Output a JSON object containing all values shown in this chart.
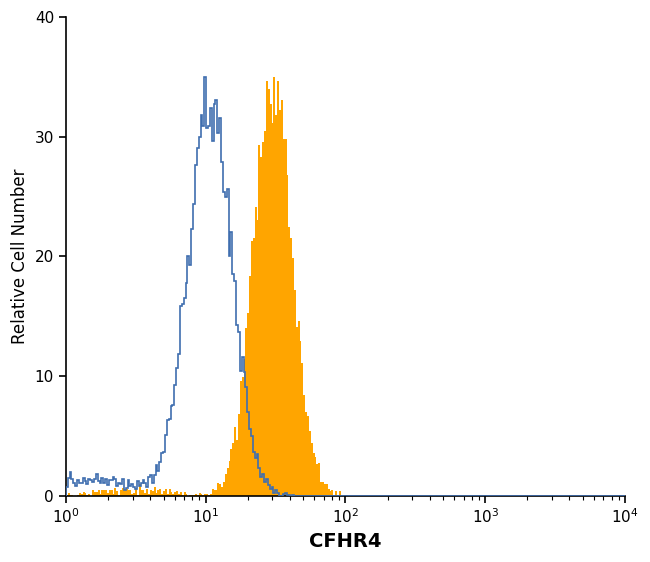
{
  "title": "",
  "xlabel": "CFHR4",
  "ylabel": "Relative Cell Number",
  "xlim_log": [
    0,
    4
  ],
  "ylim": [
    0,
    40
  ],
  "yticks": [
    0,
    10,
    20,
    30,
    40
  ],
  "background_color": "#ffffff",
  "blue_color": "#3F6EAF",
  "orange_color": "#FFA500",
  "blue_log_mean": 1.03,
  "blue_log_std": 0.16,
  "blue_peak_val": 35,
  "orange_log_mean": 1.48,
  "orange_log_std": 0.14,
  "orange_peak_val": 35,
  "n_bins": 300,
  "xlabel_fontsize": 14,
  "ylabel_fontsize": 12,
  "tick_fontsize": 11
}
